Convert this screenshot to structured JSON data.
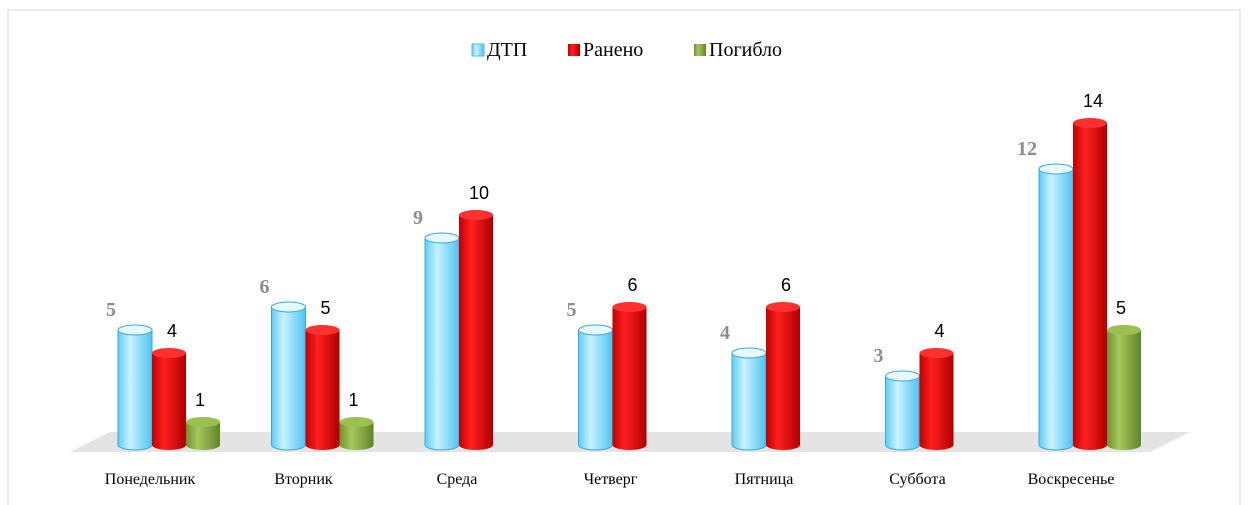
{
  "chart_data": {
    "type": "bar3d",
    "categories": [
      "Понедельник",
      "Вторник",
      "Среда",
      "Четверг",
      "Пятница",
      "Суббота",
      "Воскресенье"
    ],
    "series": [
      {
        "name": "ДТП",
        "color": "#7fdcff",
        "values": [
          5,
          6,
          9,
          5,
          4,
          3,
          12
        ]
      },
      {
        "name": "Ранено",
        "color": "#e00000",
        "values": [
          4,
          5,
          10,
          6,
          6,
          4,
          14
        ]
      },
      {
        "name": "Погибло",
        "color": "#8aae3c",
        "values": [
          1,
          1,
          null,
          null,
          null,
          null,
          5
        ]
      }
    ],
    "legend": "top"
  }
}
